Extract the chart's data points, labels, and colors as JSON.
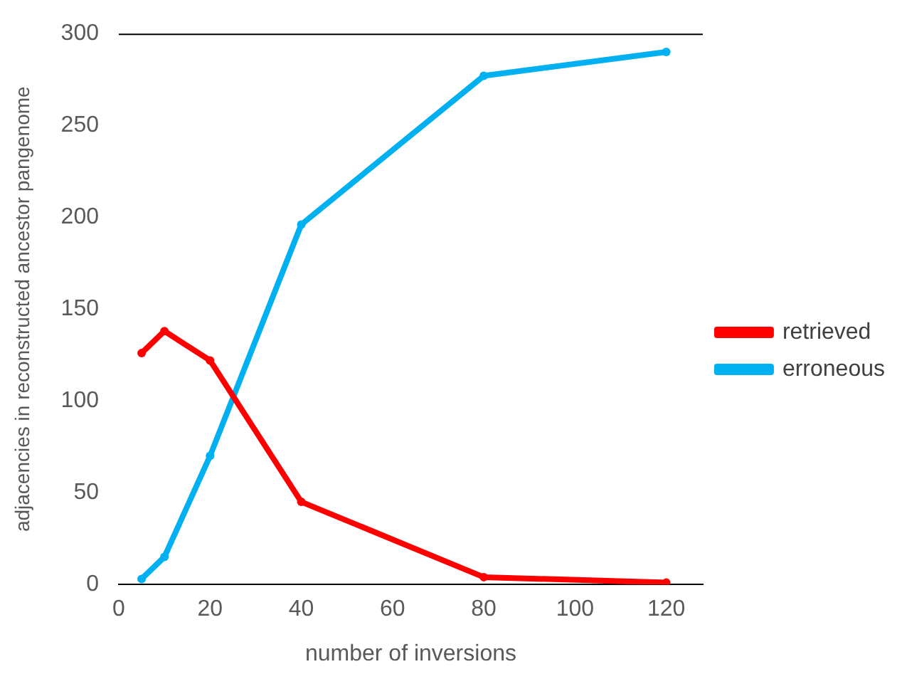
{
  "chart_data": {
    "type": "line",
    "xlabel": "number of inversions",
    "ylabel": "adjacencies in reconstructed ancestor pangenome",
    "x": [
      5,
      10,
      20,
      40,
      80,
      120
    ],
    "series": [
      {
        "name": "retrieved",
        "color": "#ff0000",
        "values": [
          126,
          138,
          122,
          45,
          4,
          1
        ]
      },
      {
        "name": "erroneous",
        "color": "#00b0f0",
        "values": [
          3,
          15,
          70,
          196,
          277,
          290
        ]
      }
    ],
    "xlim": [
      0,
      128
    ],
    "xticks": [
      0,
      20,
      40,
      60,
      80,
      100,
      120
    ],
    "ylim": [
      0,
      300
    ],
    "yticks": [
      0,
      50,
      100,
      150,
      200,
      250,
      300
    ],
    "grid": false,
    "legend": "right",
    "marker": "circle",
    "line_style": "solid"
  }
}
